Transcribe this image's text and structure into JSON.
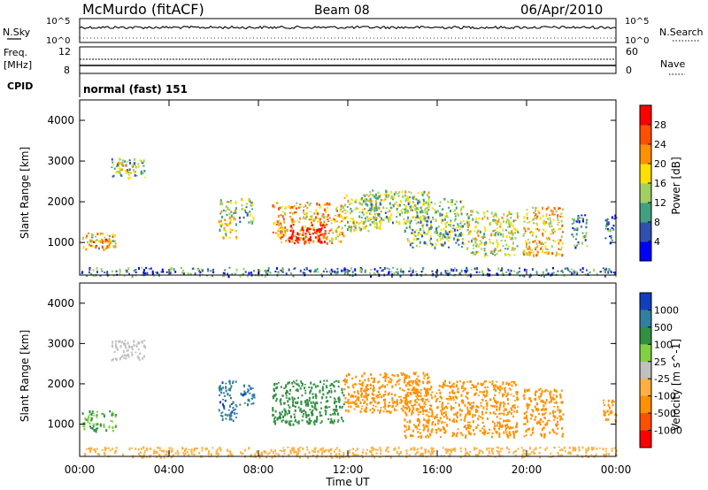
{
  "header": {
    "station": "McMurdo (fitACF)",
    "beam": "Beam 08",
    "date": "06/Apr/2010"
  },
  "status_labels": {
    "nsky": "N.Sky",
    "freq_line1": "Freq.",
    "freq_line2": "[MHz]",
    "cpid": "CPID",
    "nsearch": "N.Search",
    "nave": "Nave",
    "cpid_value": "normal (fast) 151"
  },
  "status_ticks": {
    "noise_left": [
      "10^5",
      "10^0"
    ],
    "noise_right": [
      "10^5",
      "10^0"
    ],
    "freq_left": [
      "12",
      "8"
    ],
    "nave_right": [
      "60",
      "0"
    ]
  },
  "colors": {
    "power_scale": [
      "#0000ff",
      "#3050b0",
      "#40a080",
      "#a0d060",
      "#ffe000",
      "#ff9000",
      "#ff5000",
      "#ff0000"
    ],
    "velocity_scale": [
      "#1040c0",
      "#3080a0",
      "#309040",
      "#80d040",
      "#c0c0c0",
      "#ffb040",
      "#ff9000",
      "#ff5000",
      "#ff0000"
    ]
  },
  "chart_data": [
    {
      "type": "heatmap",
      "panel": "power",
      "ylabel": "Slant Range [km]",
      "yticks": [
        "4000",
        "3000",
        "2000",
        "1000"
      ],
      "ylim": [
        200,
        4500
      ],
      "xlim": [
        0,
        24
      ],
      "colorbar": {
        "label": "Power [dB]",
        "ticks": [
          "28",
          "24",
          "20",
          "16",
          "12",
          "8",
          "4"
        ],
        "range": [
          0,
          32
        ]
      },
      "echo_regions": [
        {
          "t0": 0.1,
          "t1": 1.6,
          "r0": 850,
          "r1": 1250,
          "level": 0.55
        },
        {
          "t0": 0.4,
          "t1": 1.4,
          "r0": 900,
          "r1": 1100,
          "level": 0.8
        },
        {
          "t0": 1.4,
          "t1": 2.9,
          "r0": 2600,
          "r1": 3100,
          "level": 0.35
        },
        {
          "t0": 1.7,
          "t1": 2.5,
          "r0": 2700,
          "r1": 3000,
          "level": 0.55
        },
        {
          "t0": 6.2,
          "t1": 7.0,
          "r0": 1100,
          "r1": 2100,
          "level": 0.5
        },
        {
          "t0": 7.1,
          "t1": 7.8,
          "r0": 1500,
          "r1": 2100,
          "level": 0.4
        },
        {
          "t0": 8.6,
          "t1": 11.8,
          "r0": 1000,
          "r1": 2000,
          "level": 0.65
        },
        {
          "t0": 9.3,
          "t1": 11.0,
          "r0": 1000,
          "r1": 1500,
          "level": 0.95
        },
        {
          "t0": 11.8,
          "t1": 13.5,
          "r0": 1300,
          "r1": 2200,
          "level": 0.5
        },
        {
          "t0": 12.8,
          "t1": 15.6,
          "r0": 1500,
          "r1": 2300,
          "level": 0.45
        },
        {
          "t0": 14.5,
          "t1": 17.2,
          "r0": 900,
          "r1": 2100,
          "level": 0.4
        },
        {
          "t0": 17.3,
          "t1": 19.6,
          "r0": 700,
          "r1": 1800,
          "level": 0.5
        },
        {
          "t0": 19.8,
          "t1": 21.6,
          "r0": 700,
          "r1": 1900,
          "level": 0.6
        },
        {
          "t0": 22.0,
          "t1": 22.7,
          "r0": 900,
          "r1": 1700,
          "level": 0.3
        },
        {
          "t0": 23.5,
          "t1": 24.0,
          "r0": 1000,
          "r1": 1700,
          "level": 0.2
        },
        {
          "t0": 0.0,
          "t1": 24.0,
          "r0": 200,
          "r1": 400,
          "level": 0.25
        }
      ]
    },
    {
      "type": "heatmap",
      "panel": "velocity",
      "ylabel": "Slant Range [km]",
      "yticks": [
        "4000",
        "3000",
        "2000",
        "1000"
      ],
      "ylim": [
        200,
        4500
      ],
      "xlim": [
        0,
        24
      ],
      "xticks": [
        "00:00",
        "04:00",
        "08:00",
        "12:00",
        "16:00",
        "20:00",
        "00:00"
      ],
      "xlabel": "Time UT",
      "colorbar": {
        "label": "Velocity [m s^-1]",
        "ticks": [
          "1000",
          "500",
          "100",
          "25",
          "-25",
          "-100",
          "-500",
          "-1000"
        ],
        "range": [
          -1000,
          1000
        ]
      },
      "echo_regions": [
        {
          "t0": 0.1,
          "t1": 1.6,
          "r0": 850,
          "r1": 1350,
          "velocity": 100
        },
        {
          "t0": 1.4,
          "t1": 2.9,
          "r0": 2600,
          "r1": 3100,
          "velocity": 0
        },
        {
          "t0": 6.2,
          "t1": 7.0,
          "r0": 1100,
          "r1": 2100,
          "velocity": 800
        },
        {
          "t0": 7.1,
          "t1": 7.8,
          "r0": 1500,
          "r1": 2000,
          "velocity": 800
        },
        {
          "t0": 8.6,
          "t1": 11.8,
          "r0": 1000,
          "r1": 2100,
          "velocity": 250
        },
        {
          "t0": 11.8,
          "t1": 15.6,
          "r0": 1300,
          "r1": 2300,
          "velocity": -300
        },
        {
          "t0": 14.5,
          "t1": 19.6,
          "r0": 700,
          "r1": 2100,
          "velocity": -300
        },
        {
          "t0": 19.8,
          "t1": 21.6,
          "r0": 700,
          "r1": 1900,
          "velocity": -250
        },
        {
          "t0": 23.4,
          "t1": 24.0,
          "r0": 1100,
          "r1": 1700,
          "velocity": -150
        },
        {
          "t0": 0.0,
          "t1": 24.0,
          "r0": 200,
          "r1": 450,
          "velocity": -50
        }
      ]
    }
  ]
}
